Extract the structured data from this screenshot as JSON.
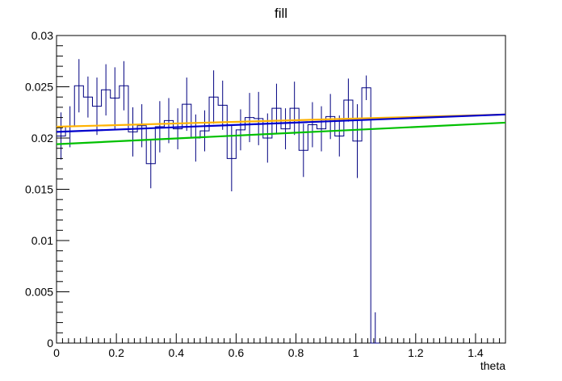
{
  "chart_data": {
    "type": "histogram",
    "title": "fill",
    "xlabel": "theta",
    "ylabel": "",
    "xlim": [
      0,
      1.5
    ],
    "ylim": [
      0,
      0.03
    ],
    "x_tick_labels": [
      "0",
      "0.2",
      "0.4",
      "0.6",
      "0.8",
      "1",
      "1.2",
      "1.4"
    ],
    "y_tick_labels": [
      "0",
      "0.005",
      "0.01",
      "0.015",
      "0.02",
      "0.025",
      "0.03"
    ],
    "grid": false,
    "legend": "none",
    "histogram": {
      "bin_width": 0.03,
      "bin_starts": [
        0.0,
        0.03,
        0.06,
        0.09,
        0.12,
        0.15,
        0.18,
        0.21,
        0.24,
        0.27,
        0.3,
        0.33,
        0.36,
        0.39,
        0.42,
        0.45,
        0.48,
        0.51,
        0.54,
        0.57,
        0.6,
        0.63,
        0.66,
        0.69,
        0.72,
        0.75,
        0.78,
        0.81,
        0.84,
        0.87,
        0.9,
        0.93,
        0.96,
        0.99,
        1.02,
        1.05
      ],
      "values": [
        0.0202,
        0.0211,
        0.0251,
        0.024,
        0.0231,
        0.0247,
        0.0239,
        0.0251,
        0.0206,
        0.0212,
        0.0175,
        0.0211,
        0.0217,
        0.0209,
        0.0233,
        0.02,
        0.0207,
        0.024,
        0.0232,
        0.018,
        0.0208,
        0.022,
        0.0219,
        0.02,
        0.0229,
        0.0209,
        0.0229,
        0.0188,
        0.0213,
        0.0209,
        0.0221,
        0.0202,
        0.0237,
        0.0197,
        0.0249,
        0.0
      ],
      "errors": [
        0.0023,
        0.002,
        0.0026,
        0.002,
        0.0028,
        0.0025,
        0.003,
        0.0024,
        0.0024,
        0.0021,
        0.0024,
        0.0025,
        0.0022,
        0.002,
        0.0026,
        0.0023,
        0.002,
        0.0026,
        0.0024,
        0.0032,
        0.002,
        0.0024,
        0.0026,
        0.0024,
        0.0024,
        0.002,
        0.0026,
        0.0026,
        0.0022,
        0.0022,
        0.0022,
        0.002,
        0.0021,
        0.0036,
        0.0012,
        0.003
      ],
      "color": "#000080"
    },
    "series": [
      {
        "x": [
          0.0,
          1.5
        ],
        "values": [
          0.0211,
          0.0223
        ],
        "color": "#ffb200"
      },
      {
        "x": [
          0.0,
          1.5
        ],
        "values": [
          0.0206,
          0.0223
        ],
        "color": "#0000cc"
      },
      {
        "x": [
          0.0,
          1.5
        ],
        "values": [
          0.0194,
          0.0215
        ],
        "color": "#00c000"
      }
    ]
  }
}
